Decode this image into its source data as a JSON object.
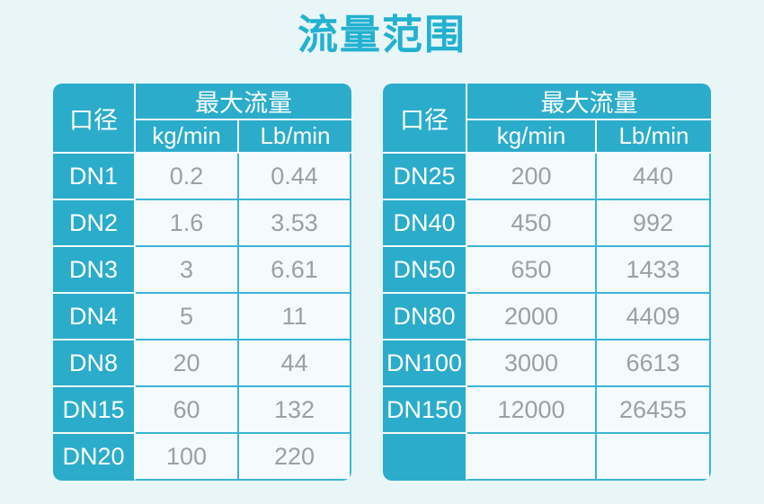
{
  "title": "流量范围",
  "colors": {
    "title_teal": "#23b1d0",
    "header_teal": "#2baccb",
    "grid_cyan": "#3ab5d6",
    "cell_bg": "#f5fbfd",
    "value_text_gray": "#9ba0a3",
    "page_bg": "#e9f6f8"
  },
  "chart_data": [
    {
      "type": "table",
      "title": "流量范围",
      "header": {
        "diameter": "口径",
        "max_flow": "最大流量",
        "kg_unit": "kg/min",
        "lb_unit": "Lb/min"
      },
      "rows": [
        {
          "dn": "DN1",
          "kg": "0.2",
          "lb": "0.44"
        },
        {
          "dn": "DN2",
          "kg": "1.6",
          "lb": "3.53"
        },
        {
          "dn": "DN3",
          "kg": "3",
          "lb": "6.61"
        },
        {
          "dn": "DN4",
          "kg": "5",
          "lb": "11"
        },
        {
          "dn": "DN8",
          "kg": "20",
          "lb": "44"
        },
        {
          "dn": "DN15",
          "kg": "60",
          "lb": "132"
        },
        {
          "dn": "DN20",
          "kg": "100",
          "lb": "220"
        }
      ]
    },
    {
      "type": "table",
      "title": "流量范围",
      "header": {
        "diameter": "口径",
        "max_flow": "最大流量",
        "kg_unit": "kg/min",
        "lb_unit": "Lb/min"
      },
      "rows": [
        {
          "dn": "DN25",
          "kg": "200",
          "lb": "440"
        },
        {
          "dn": "DN40",
          "kg": "450",
          "lb": "992"
        },
        {
          "dn": "DN50",
          "kg": "650",
          "lb": "1433"
        },
        {
          "dn": "DN80",
          "kg": "2000",
          "lb": "4409"
        },
        {
          "dn": "DN100",
          "kg": "3000",
          "lb": "6613"
        },
        {
          "dn": "DN150",
          "kg": "12000",
          "lb": "26455"
        },
        {
          "dn": "",
          "kg": "",
          "lb": ""
        }
      ]
    }
  ]
}
